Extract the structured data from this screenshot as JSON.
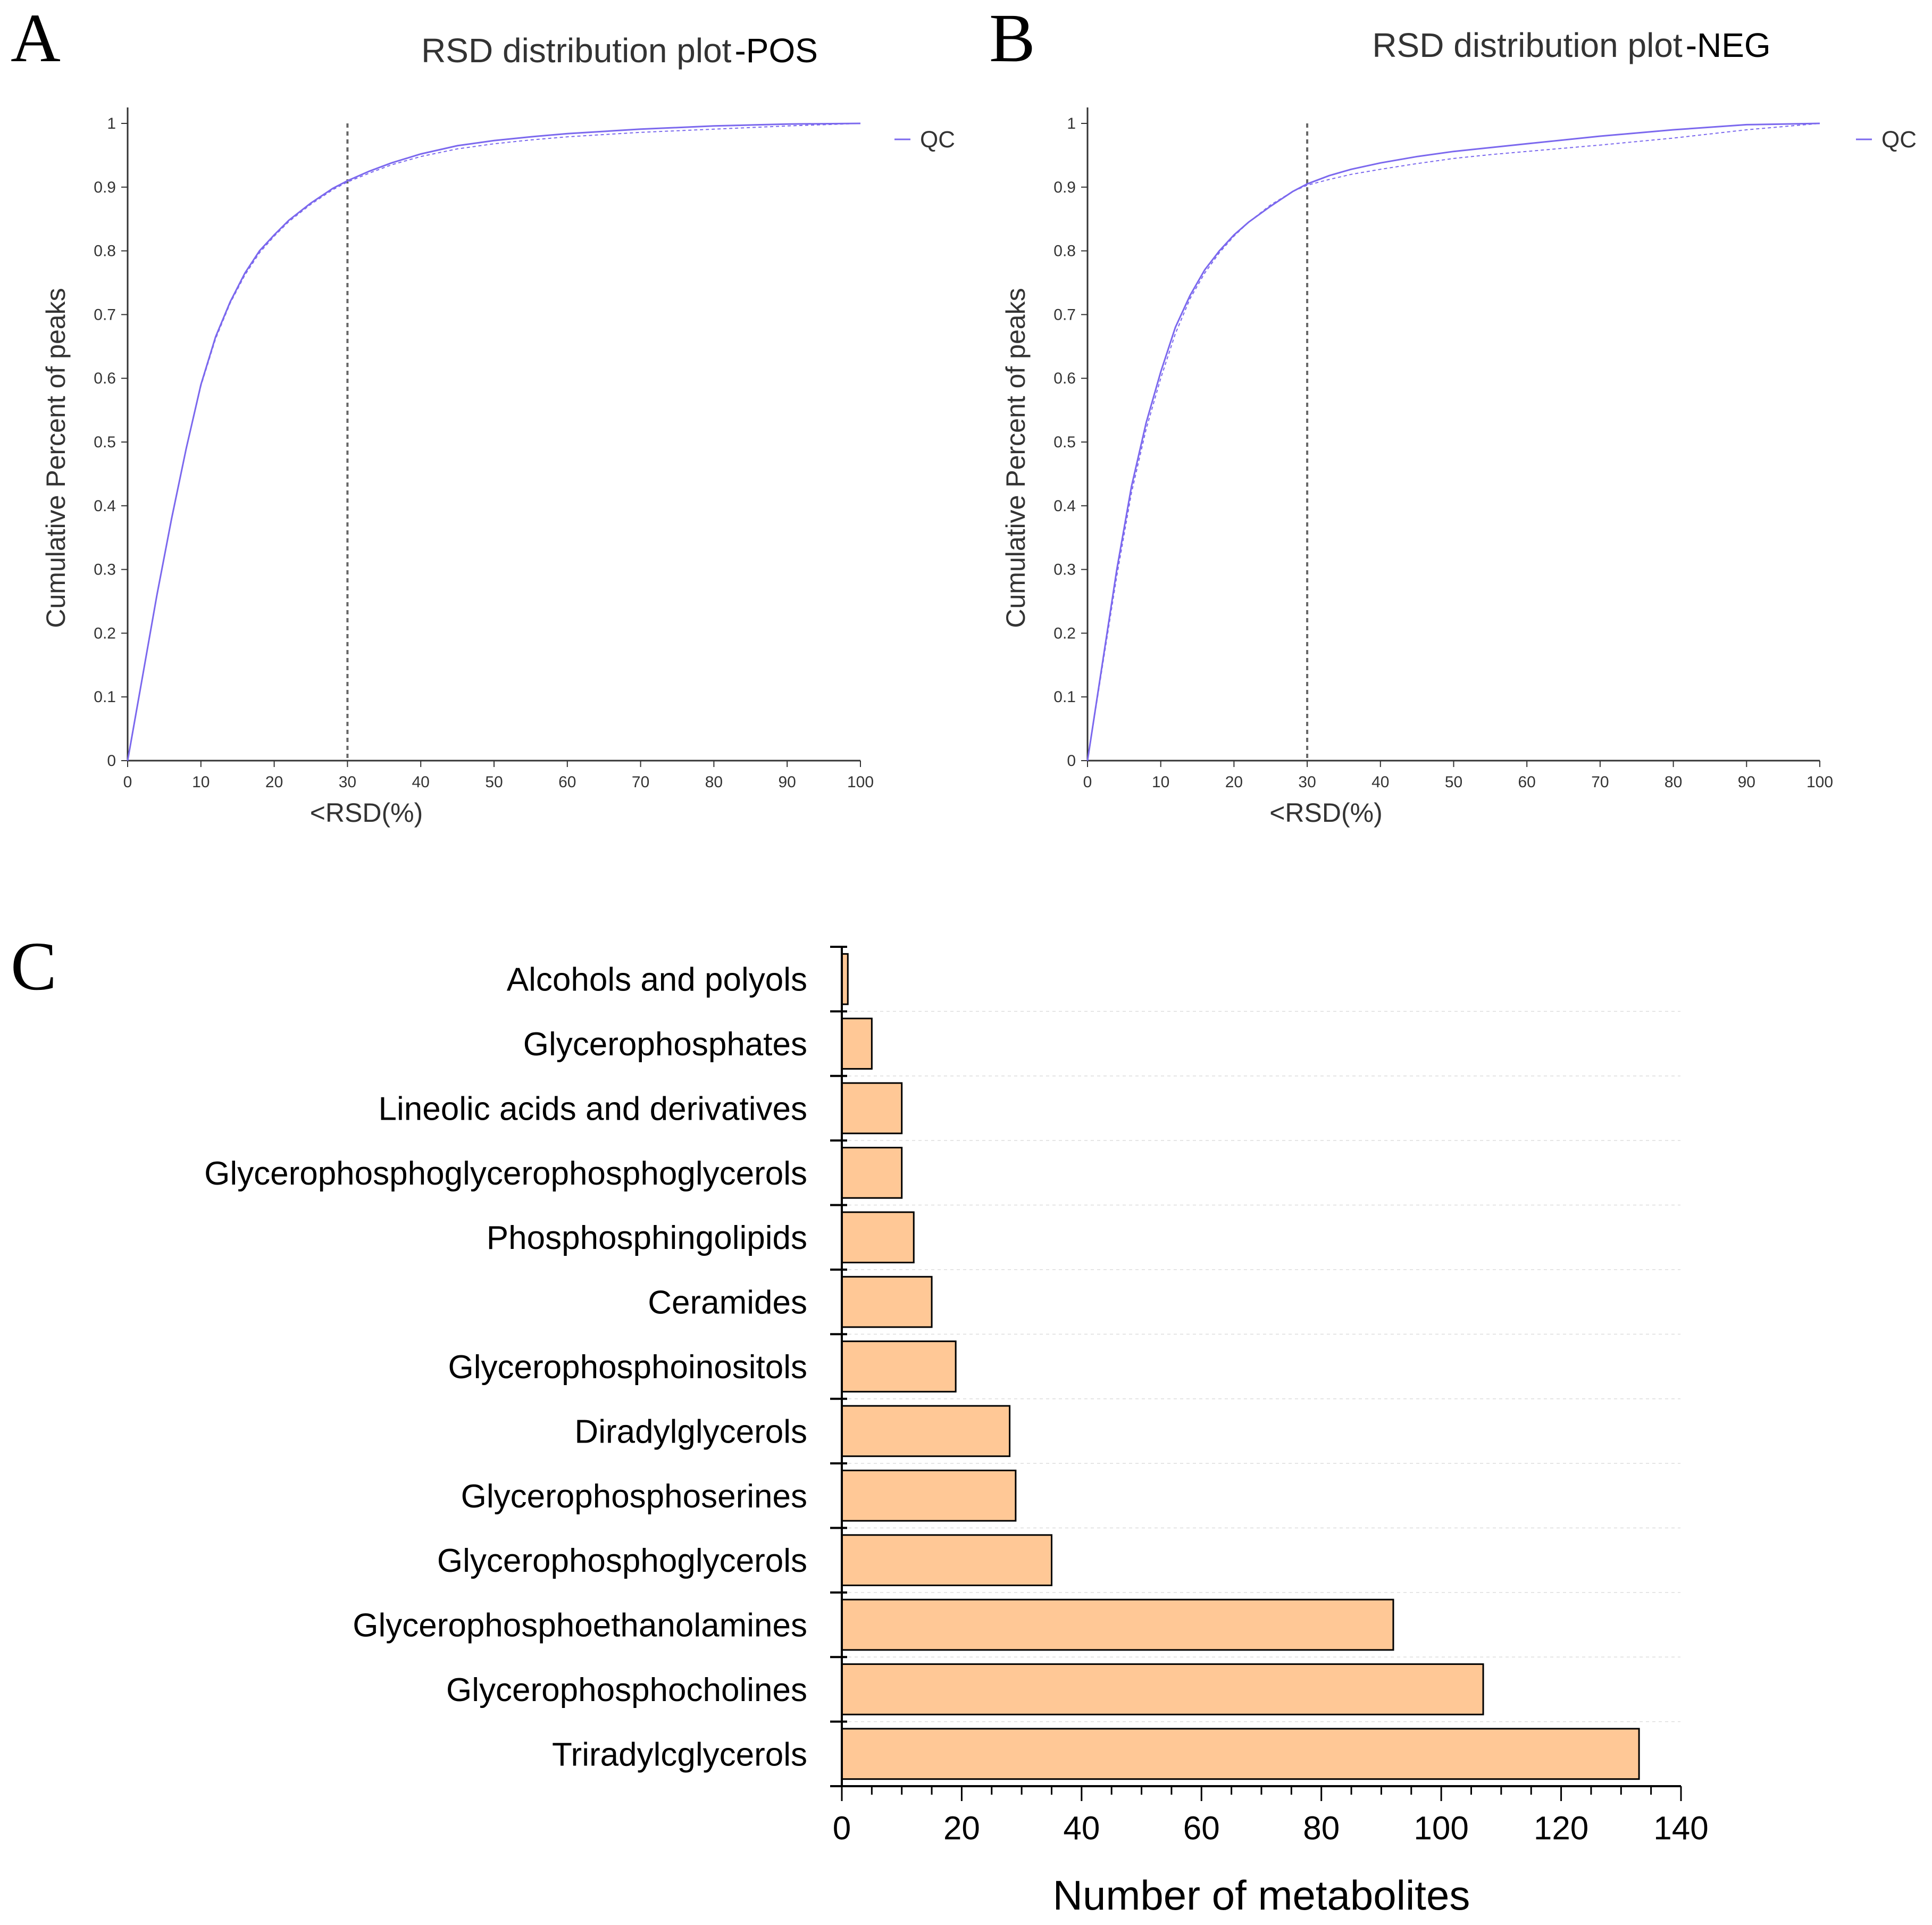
{
  "chart_data": [
    {
      "panel": "A",
      "type": "line",
      "title": "RSD distribution plot",
      "title_suffix": "-POS",
      "xlabel": "<RSD(%)",
      "ylabel": "Cumulative Percent of peaks",
      "xlim": [
        0,
        100
      ],
      "ylim": [
        0,
        1
      ],
      "xticks": [
        0,
        10,
        20,
        30,
        40,
        50,
        60,
        70,
        80,
        90,
        100
      ],
      "yticks": [
        0,
        0.1,
        0.2,
        0.3,
        0.4,
        0.5,
        0.6,
        0.7,
        0.8,
        0.9,
        1
      ],
      "threshold_x": 30,
      "legend": [
        "QC"
      ],
      "legend_position": "top-right",
      "line_color": "#7b68ee",
      "series": [
        {
          "name": "QC",
          "style": "solid",
          "x": [
            0,
            2,
            4,
            6,
            8,
            10,
            12,
            14,
            16,
            18,
            20,
            22,
            25,
            28,
            30,
            33,
            36,
            40,
            45,
            50,
            55,
            60,
            70,
            80,
            90,
            100
          ],
          "y": [
            0,
            0.13,
            0.26,
            0.38,
            0.49,
            0.59,
            0.665,
            0.72,
            0.765,
            0.8,
            0.825,
            0.848,
            0.875,
            0.898,
            0.91,
            0.925,
            0.938,
            0.952,
            0.965,
            0.973,
            0.979,
            0.984,
            0.991,
            0.996,
            0.999,
            1
          ]
        },
        {
          "name": "QC",
          "style": "dashed",
          "x": [
            0,
            2,
            4,
            6,
            8,
            10,
            12,
            14,
            16,
            18,
            20,
            22,
            25,
            28,
            30,
            33,
            36,
            40,
            45,
            50,
            55,
            60,
            70,
            80,
            90,
            100
          ],
          "y": [
            0,
            0.13,
            0.26,
            0.38,
            0.49,
            0.588,
            0.662,
            0.718,
            0.762,
            0.797,
            0.823,
            0.846,
            0.873,
            0.896,
            0.908,
            0.922,
            0.935,
            0.948,
            0.96,
            0.968,
            0.974,
            0.979,
            0.986,
            0.991,
            0.996,
            1
          ]
        }
      ]
    },
    {
      "panel": "B",
      "type": "line",
      "title": "RSD distribution plot",
      "title_suffix": "-NEG",
      "xlabel": "<RSD(%)",
      "ylabel": "Cumulative Percent of peaks",
      "xlim": [
        0,
        100
      ],
      "ylim": [
        0,
        1
      ],
      "xticks": [
        0,
        10,
        20,
        30,
        40,
        50,
        60,
        70,
        80,
        90,
        100
      ],
      "yticks": [
        0,
        0.1,
        0.2,
        0.3,
        0.4,
        0.5,
        0.6,
        0.7,
        0.8,
        0.9,
        1
      ],
      "threshold_x": 30,
      "legend": [
        "QC"
      ],
      "legend_position": "top-right",
      "line_color": "#7b68ee",
      "series": [
        {
          "name": "QC",
          "style": "solid",
          "x": [
            0,
            2,
            4,
            6,
            8,
            10,
            12,
            14,
            16,
            18,
            20,
            22,
            25,
            28,
            30,
            33,
            36,
            40,
            45,
            50,
            55,
            60,
            70,
            80,
            90,
            100
          ],
          "y": [
            0,
            0.15,
            0.3,
            0.43,
            0.53,
            0.61,
            0.68,
            0.73,
            0.77,
            0.8,
            0.825,
            0.845,
            0.87,
            0.893,
            0.905,
            0.918,
            0.928,
            0.938,
            0.948,
            0.956,
            0.962,
            0.968,
            0.98,
            0.99,
            0.998,
            1
          ]
        },
        {
          "name": "QC",
          "style": "dashed",
          "x": [
            0,
            2,
            4,
            6,
            8,
            10,
            12,
            14,
            16,
            18,
            20,
            22,
            25,
            28,
            30,
            33,
            36,
            40,
            45,
            50,
            55,
            60,
            70,
            80,
            90,
            100
          ],
          "y": [
            0,
            0.145,
            0.29,
            0.42,
            0.52,
            0.6,
            0.67,
            0.725,
            0.765,
            0.797,
            0.823,
            0.845,
            0.872,
            0.893,
            0.903,
            0.912,
            0.92,
            0.928,
            0.937,
            0.945,
            0.951,
            0.956,
            0.966,
            0.977,
            0.99,
            1
          ]
        }
      ]
    },
    {
      "panel": "C",
      "type": "bar",
      "orientation": "horizontal",
      "xlabel": "Number of metabolites",
      "ylabel": "",
      "xlim": [
        0,
        140
      ],
      "xticks": [
        0,
        20,
        40,
        60,
        80,
        100,
        120,
        140
      ],
      "bar_color": "#ffc896",
      "categories": [
        "Alcohols and polyols",
        "Glycerophosphates",
        "Lineolic acids and derivatives",
        "Glycerophosphoglycerophosphoglycerols",
        "Phosphosphingolipids",
        "Ceramides",
        "Glycerophosphoinositols",
        "Diradylglycerols",
        "Glycerophosphoserines",
        "Glycerophosphoglycerols",
        "Glycerophosphoethanolamines",
        "Glycerophosphocholines",
        "Triradylcglycerols"
      ],
      "values": [
        1,
        5,
        10,
        10,
        12,
        15,
        19,
        28,
        29,
        35,
        92,
        107,
        133
      ]
    }
  ]
}
